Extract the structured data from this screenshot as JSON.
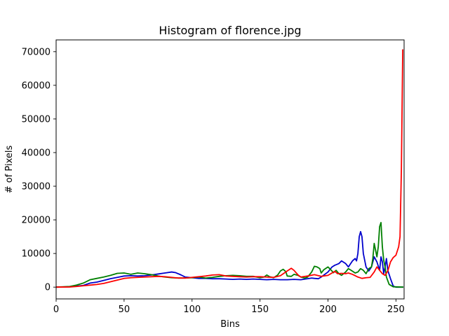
{
  "chart_data": {
    "type": "line",
    "title": "Histogram of florence.jpg",
    "xlabel": "Bins",
    "ylabel": "# of Pixels",
    "xlim": [
      0,
      256
    ],
    "ylim": [
      -3500,
      73500
    ],
    "xticks": [
      0,
      50,
      100,
      150,
      200,
      250
    ],
    "yticks": [
      0,
      10000,
      20000,
      30000,
      40000,
      50000,
      60000,
      70000
    ],
    "xtick_labels": [
      "0",
      "50",
      "100",
      "150",
      "200",
      "250"
    ],
    "ytick_labels": [
      "0",
      "10000",
      "20000",
      "30000",
      "40000",
      "50000",
      "60000",
      "70000"
    ],
    "grid": false,
    "legend": "none",
    "series": [
      {
        "color": "#0000cc",
        "points": [
          [
            0,
            0
          ],
          [
            10,
            100
          ],
          [
            20,
            500
          ],
          [
            25,
            1200
          ],
          [
            30,
            1500
          ],
          [
            35,
            2000
          ],
          [
            40,
            2500
          ],
          [
            45,
            2900
          ],
          [
            50,
            3300
          ],
          [
            55,
            3400
          ],
          [
            60,
            3300
          ],
          [
            65,
            3400
          ],
          [
            70,
            3600
          ],
          [
            75,
            3900
          ],
          [
            80,
            4200
          ],
          [
            85,
            4500
          ],
          [
            88,
            4300
          ],
          [
            92,
            3600
          ],
          [
            95,
            3000
          ],
          [
            100,
            2800
          ],
          [
            105,
            2600
          ],
          [
            110,
            2600
          ],
          [
            115,
            2500
          ],
          [
            120,
            2500
          ],
          [
            125,
            2400
          ],
          [
            130,
            2300
          ],
          [
            135,
            2400
          ],
          [
            140,
            2300
          ],
          [
            145,
            2400
          ],
          [
            150,
            2300
          ],
          [
            155,
            2200
          ],
          [
            160,
            2300
          ],
          [
            165,
            2200
          ],
          [
            170,
            2200
          ],
          [
            175,
            2300
          ],
          [
            180,
            2200
          ],
          [
            185,
            2500
          ],
          [
            188,
            2700
          ],
          [
            190,
            2600
          ],
          [
            193,
            2500
          ],
          [
            195,
            3000
          ],
          [
            200,
            4500
          ],
          [
            203,
            6000
          ],
          [
            205,
            6500
          ],
          [
            208,
            7000
          ],
          [
            210,
            7800
          ],
          [
            213,
            7000
          ],
          [
            215,
            6000
          ],
          [
            218,
            7800
          ],
          [
            220,
            8500
          ],
          [
            221,
            7800
          ],
          [
            222,
            10000
          ],
          [
            223,
            15000
          ],
          [
            224,
            16500
          ],
          [
            225,
            15000
          ],
          [
            226,
            10000
          ],
          [
            228,
            6000
          ],
          [
            230,
            4800
          ],
          [
            232,
            6000
          ],
          [
            234,
            9000
          ],
          [
            236,
            7500
          ],
          [
            238,
            5000
          ],
          [
            239,
            9000
          ],
          [
            240,
            7500
          ],
          [
            241,
            4000
          ],
          [
            242,
            6000
          ],
          [
            243,
            8500
          ],
          [
            244,
            5000
          ],
          [
            246,
            2500
          ],
          [
            248,
            300
          ],
          [
            250,
            0
          ],
          [
            255,
            0
          ]
        ]
      },
      {
        "color": "#008000",
        "points": [
          [
            0,
            0
          ],
          [
            10,
            200
          ],
          [
            15,
            600
          ],
          [
            20,
            1200
          ],
          [
            25,
            2200
          ],
          [
            30,
            2600
          ],
          [
            35,
            3000
          ],
          [
            40,
            3500
          ],
          [
            45,
            4100
          ],
          [
            50,
            4200
          ],
          [
            55,
            3800
          ],
          [
            60,
            4200
          ],
          [
            65,
            4000
          ],
          [
            70,
            3700
          ],
          [
            75,
            3300
          ],
          [
            80,
            3000
          ],
          [
            85,
            2800
          ],
          [
            90,
            2700
          ],
          [
            95,
            2700
          ],
          [
            100,
            2800
          ],
          [
            105,
            3000
          ],
          [
            110,
            2700
          ],
          [
            115,
            2900
          ],
          [
            120,
            3200
          ],
          [
            125,
            3400
          ],
          [
            130,
            3500
          ],
          [
            135,
            3400
          ],
          [
            140,
            3200
          ],
          [
            145,
            3200
          ],
          [
            150,
            2800
          ],
          [
            153,
            3000
          ],
          [
            155,
            3600
          ],
          [
            157,
            3100
          ],
          [
            160,
            2800
          ],
          [
            163,
            3600
          ],
          [
            165,
            4800
          ],
          [
            167,
            5300
          ],
          [
            169,
            4600
          ],
          [
            170,
            3300
          ],
          [
            173,
            3200
          ],
          [
            175,
            3800
          ],
          [
            178,
            3500
          ],
          [
            180,
            3000
          ],
          [
            183,
            2700
          ],
          [
            185,
            3000
          ],
          [
            188,
            4500
          ],
          [
            190,
            6200
          ],
          [
            192,
            6000
          ],
          [
            194,
            5500
          ],
          [
            195,
            4200
          ],
          [
            197,
            5200
          ],
          [
            200,
            6000
          ],
          [
            202,
            5200
          ],
          [
            204,
            4300
          ],
          [
            206,
            5000
          ],
          [
            208,
            4000
          ],
          [
            210,
            3500
          ],
          [
            213,
            4500
          ],
          [
            215,
            5500
          ],
          [
            217,
            5000
          ],
          [
            220,
            4200
          ],
          [
            222,
            4500
          ],
          [
            224,
            5500
          ],
          [
            226,
            5000
          ],
          [
            228,
            4000
          ],
          [
            230,
            5500
          ],
          [
            232,
            6000
          ],
          [
            233,
            8500
          ],
          [
            234,
            13000
          ],
          [
            235,
            11000
          ],
          [
            236,
            9000
          ],
          [
            237,
            12000
          ],
          [
            238,
            18000
          ],
          [
            239,
            19200
          ],
          [
            240,
            12000
          ],
          [
            241,
            8000
          ],
          [
            242,
            6000
          ],
          [
            243,
            3000
          ],
          [
            245,
            800
          ],
          [
            248,
            100
          ],
          [
            255,
            0
          ]
        ]
      },
      {
        "color": "#ff0000",
        "points": [
          [
            0,
            0
          ],
          [
            10,
            50
          ],
          [
            15,
            200
          ],
          [
            20,
            400
          ],
          [
            25,
            600
          ],
          [
            30,
            800
          ],
          [
            35,
            1100
          ],
          [
            40,
            1600
          ],
          [
            45,
            2100
          ],
          [
            50,
            2600
          ],
          [
            55,
            2800
          ],
          [
            60,
            2900
          ],
          [
            65,
            3000
          ],
          [
            70,
            3100
          ],
          [
            75,
            3200
          ],
          [
            80,
            3100
          ],
          [
            85,
            2900
          ],
          [
            90,
            2700
          ],
          [
            95,
            2700
          ],
          [
            100,
            2900
          ],
          [
            105,
            3100
          ],
          [
            110,
            3300
          ],
          [
            115,
            3600
          ],
          [
            120,
            3700
          ],
          [
            125,
            3300
          ],
          [
            130,
            3200
          ],
          [
            135,
            3100
          ],
          [
            140,
            3000
          ],
          [
            145,
            3100
          ],
          [
            150,
            3100
          ],
          [
            155,
            3000
          ],
          [
            160,
            2900
          ],
          [
            165,
            3400
          ],
          [
            170,
            4800
          ],
          [
            173,
            5600
          ],
          [
            175,
            5000
          ],
          [
            178,
            3600
          ],
          [
            180,
            3000
          ],
          [
            185,
            3300
          ],
          [
            190,
            3700
          ],
          [
            195,
            3200
          ],
          [
            200,
            3500
          ],
          [
            205,
            4700
          ],
          [
            207,
            4000
          ],
          [
            210,
            4100
          ],
          [
            213,
            4000
          ],
          [
            215,
            4200
          ],
          [
            218,
            3800
          ],
          [
            220,
            3400
          ],
          [
            222,
            3000
          ],
          [
            225,
            2600
          ],
          [
            228,
            2800
          ],
          [
            231,
            2900
          ],
          [
            234,
            4500
          ],
          [
            236,
            6000
          ],
          [
            238,
            5000
          ],
          [
            240,
            4000
          ],
          [
            242,
            3500
          ],
          [
            244,
            4800
          ],
          [
            246,
            7500
          ],
          [
            248,
            8800
          ],
          [
            250,
            9500
          ],
          [
            252,
            12000
          ],
          [
            253,
            15000
          ],
          [
            254,
            35000
          ],
          [
            255,
            70500
          ]
        ]
      }
    ]
  }
}
